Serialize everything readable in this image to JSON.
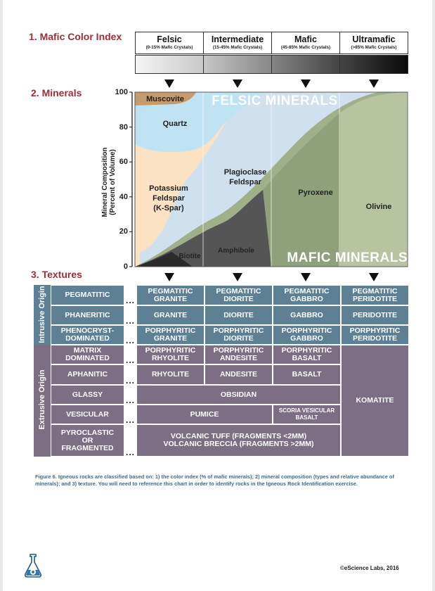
{
  "sections": {
    "color_index": "1. Mafic Color Index",
    "minerals": "2. Minerals",
    "textures": "3. Textures"
  },
  "color_index": [
    {
      "name": "Felsic",
      "range": "(0-15% Mafic Crystals)"
    },
    {
      "name": "Intermediate",
      "range": "(15-45% Mafic Crystals)"
    },
    {
      "name": "Mafic",
      "range": "(45-85% Mafic Crystals)"
    },
    {
      "name": "Ultramafic",
      "range": "(>85% Mafic Crystals)"
    }
  ],
  "minerals_chart": {
    "y_axis_label_line1": "Mineral Composition",
    "y_axis_label_line2": "(Percent of Volume)",
    "y_ticks": [
      "100",
      "80",
      "60",
      "40",
      "20",
      "0"
    ],
    "felsic_title": "FELSIC MINERALS",
    "mafic_title": "MAFIC MINERALS",
    "muscovite": "Muscovite",
    "quartz": "Quartz",
    "kspar_1": "Potassium",
    "kspar_2": "Feldspar",
    "kspar_3": "(K-Spar)",
    "plag_1": "Plagioclase",
    "plag_2": "Feldspar",
    "pyroxene": "Pyroxene",
    "olivine": "Olivine",
    "biotite": "Biotite",
    "amphibole": "Amphibole"
  },
  "textures": {
    "intrusive_label": "Intrusive Origin",
    "extrusive_label": "Extrusive Origin",
    "dots": "...",
    "rows": [
      {
        "texture": "PEGMATITIC",
        "felsic": "PEGMATITIC GRANITE",
        "intermediate": "PEGMATITIC DIORITE",
        "mafic": "PEGMATITIC GABBRO",
        "ultramafic": "PEGMATITIC PERIDOTITE"
      },
      {
        "texture": "PHANERITIC",
        "felsic": "GRANITE",
        "intermediate": "DIORITE",
        "mafic": "GABBRO",
        "ultramafic": "PERIDOTITE"
      },
      {
        "texture": "PHENOCRYST-DOMINATED",
        "felsic": "PORPHYRITIC GRANITE",
        "intermediate": "PORPHYRITIC DIORITE",
        "mafic": "PORPHYRITIC GABBRO",
        "ultramafic": "PORPHYRITIC PERIDOTITE"
      },
      {
        "texture": "MATRIX DOMINATED",
        "felsic": "PORPHYRITIC RHYOLITE",
        "intermediate": "PORPHYRITIC ANDESITE",
        "mafic": "PORPHYRITIC BASALT"
      },
      {
        "texture": "APHANITIC",
        "felsic": "RHYOLITE",
        "intermediate": "ANDESITE",
        "mafic": "BASALT"
      },
      {
        "texture": "GLASSY",
        "merged": "OBSIDIAN"
      },
      {
        "texture": "VESICULAR",
        "merged": "PUMICE",
        "mafic": "SCORIA VESICULAR BASALT"
      },
      {
        "texture": "PYROCLASTIC OR FRAGMENTED",
        "merged_line1": "VOLCANIC TUFF (FRAGMENTS <2MM)",
        "merged_line2": "VOLCANIC BRECCIA (FRAGMENTS >2MM)"
      }
    ],
    "komatite": "KOMATITE"
  },
  "caption": "Figure 6. Igneous rocks are classified based on: 1) the color index (% of mafic minerals); 2) mineral composition (types and relative abundance of minerals); and 3) texture. You will need to reference this chart in order to identify rocks in the Igneous Rock Identification exercise.",
  "copyright": "©eScience Labs, 2016"
}
